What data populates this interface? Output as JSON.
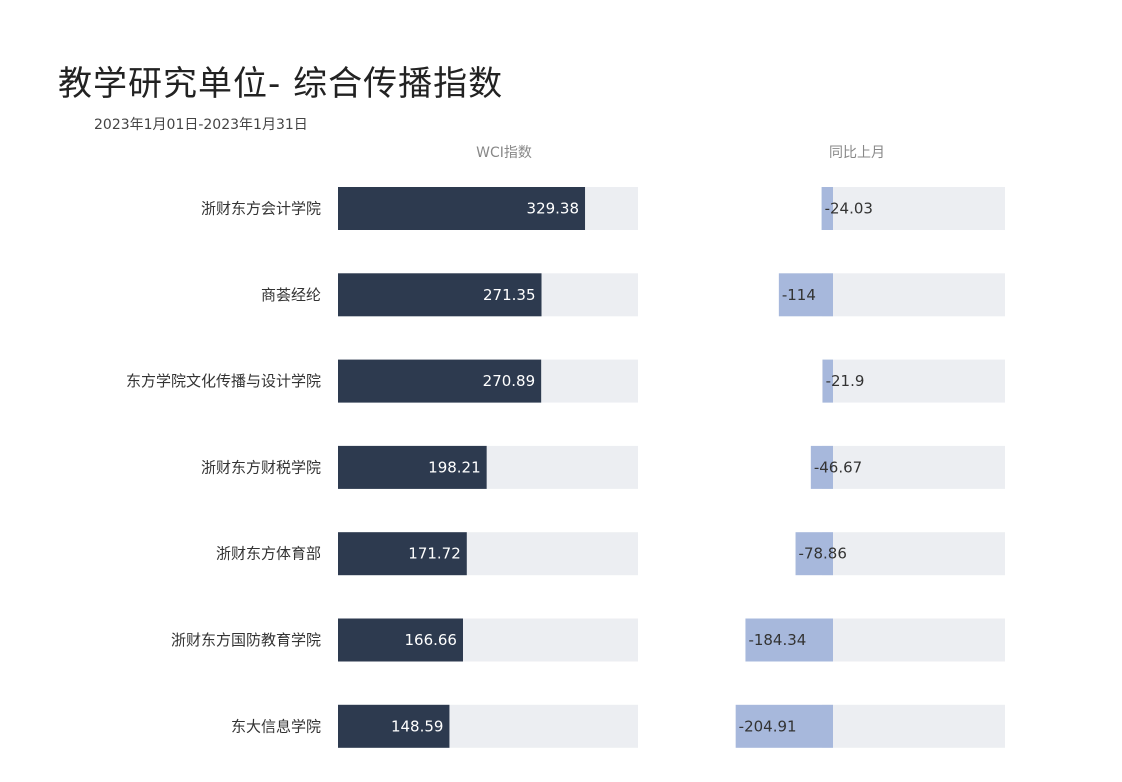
{
  "title": "教学研究单位- 综合传播指数",
  "subtitle": "2023年1月01日-2023年1月31日",
  "colors": {
    "primary_bar": "#2d3a4f",
    "change_bar": "#a7b8dc",
    "track": "#eceef2",
    "header_text": "#888888",
    "label_text": "#333333"
  },
  "chart_data": {
    "type": "bar",
    "title": "教学研究单位- 综合传播指数",
    "subtitle": "2023年1月01日-2023年1月31日",
    "categories": [
      "浙财东方会计学院",
      "商荟经纶",
      "东方学院文化传播与设计学院",
      "浙财东方财税学院",
      "浙财东方体育部",
      "浙财东方国防教育学院",
      "东大信息学院"
    ],
    "series": [
      {
        "name": "WCI指数",
        "values": [
          329.38,
          271.35,
          270.89,
          198.21,
          171.72,
          166.66,
          148.59
        ]
      },
      {
        "name": "同比上月",
        "values": [
          -24.03,
          -114,
          -21.9,
          -46.67,
          -78.86,
          -184.34,
          -204.91
        ]
      }
    ],
    "value_labels": {
      "wci": [
        "329.38",
        "271.35",
        "270.89",
        "198.21",
        "171.72",
        "166.66",
        "148.59"
      ],
      "change": [
        "-24.03",
        "-114",
        "-21.9",
        "-46.67",
        "-78.86",
        "-184.34",
        "-204.91"
      ]
    },
    "wci_range": [
      0,
      400
    ],
    "change_range": [
      -450,
      0
    ],
    "grid": false,
    "legend": "none"
  }
}
